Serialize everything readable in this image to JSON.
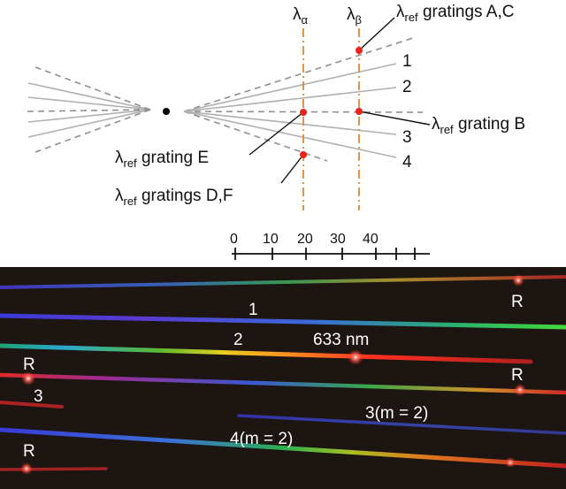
{
  "diagram": {
    "wavelength_markers": [
      {
        "greek": "λ",
        "sub": "α"
      },
      {
        "greek": "λ",
        "sub": "β"
      }
    ],
    "callouts": [
      {
        "lambda": "λ",
        "sub": "ref",
        "text": " gratings A,C"
      },
      {
        "lambda": "λ",
        "sub": "ref",
        "text": " grating B"
      },
      {
        "lambda": "λ",
        "sub": "ref",
        "text": " grating E"
      },
      {
        "lambda": "λ",
        "sub": "ref",
        "text": " gratings D,F"
      }
    ],
    "beam_numbers": [
      "1",
      "2",
      "3",
      "4"
    ],
    "scale_ticks": [
      "0",
      "10",
      "20",
      "30",
      "40"
    ]
  },
  "photo": {
    "labels": {
      "r1": "R",
      "r2": "R",
      "r3": "R",
      "r4": "R",
      "n1": "1",
      "n2": "2",
      "n3": "3",
      "laser": "633 nm",
      "order3": "3(m = 2)",
      "order4": "4(m = 2)"
    }
  },
  "colors": {
    "dash_line": "#d98a3a",
    "ref_dot": "#e8231c",
    "ray_solid": "#b0b0b0",
    "ray_dashed": "#909090",
    "photo_bg": "#1c1512"
  }
}
